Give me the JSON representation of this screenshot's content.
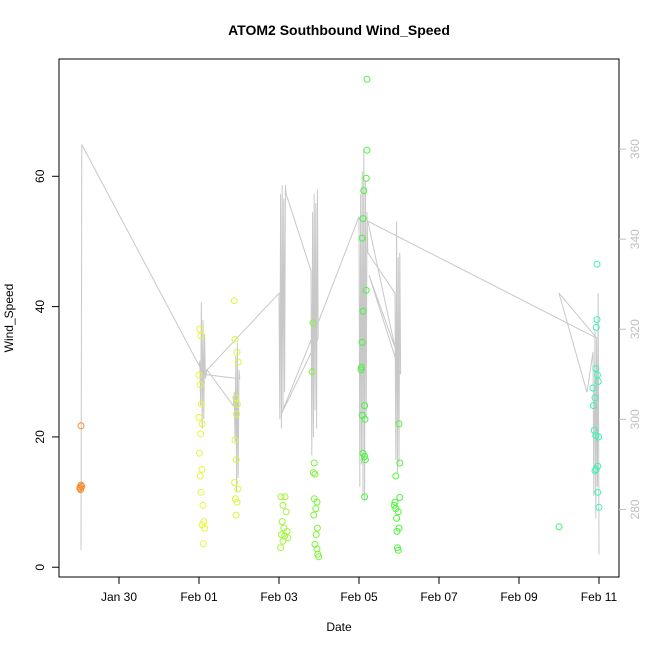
{
  "chart_data": {
    "type": "scatter",
    "title": "ATOM2 Southbound Wind_Speed",
    "xlabel": "Date",
    "ylabel": "Wind_Speed",
    "x_ticks": [
      {
        "label": "Jan 30",
        "value": 0
      },
      {
        "label": "Feb 01",
        "value": 2
      },
      {
        "label": "Feb 03",
        "value": 4
      },
      {
        "label": "Feb 05",
        "value": 6
      },
      {
        "label": "Feb 07",
        "value": 8
      },
      {
        "label": "Feb 09",
        "value": 10
      },
      {
        "label": "Feb 11",
        "value": 12
      }
    ],
    "xlim": [
      -1.5,
      12.5
    ],
    "ylim": [
      -1.5,
      78
    ],
    "y_ticks": [
      0,
      20,
      40,
      60
    ],
    "y2lim": [
      265,
      380
    ],
    "y2_ticks": [
      280,
      300,
      320,
      340,
      360
    ],
    "y2_color": "#bfbfbf",
    "grid": false,
    "points": [
      {
        "x": -0.95,
        "y": 21.7,
        "color": "#f98a2c"
      },
      {
        "x": -0.95,
        "y": 12.6,
        "color": "#f98a2c"
      },
      {
        "x": -0.97,
        "y": 12.3,
        "color": "#f98a2c"
      },
      {
        "x": -0.98,
        "y": 12.1,
        "color": "#f98a2c"
      },
      {
        "x": -0.93,
        "y": 12.4,
        "color": "#f98a2c"
      },
      {
        "x": -0.96,
        "y": 11.9,
        "color": "#f98a2c"
      },
      {
        "x": 2.02,
        "y": 36.5,
        "color": "#e8f53c"
      },
      {
        "x": 2.05,
        "y": 35.5,
        "color": "#e8f53c"
      },
      {
        "x": 2.0,
        "y": 29.5,
        "color": "#e8f53c"
      },
      {
        "x": 2.03,
        "y": 28.0,
        "color": "#e8f53c"
      },
      {
        "x": 2.06,
        "y": 25.0,
        "color": "#e8f53c"
      },
      {
        "x": 2.0,
        "y": 23.0,
        "color": "#e8f53c"
      },
      {
        "x": 2.08,
        "y": 22.0,
        "color": "#e8f53c"
      },
      {
        "x": 2.04,
        "y": 20.5,
        "color": "#e8f53c"
      },
      {
        "x": 2.01,
        "y": 17.5,
        "color": "#e8f53c"
      },
      {
        "x": 2.07,
        "y": 15.0,
        "color": "#e8f53c"
      },
      {
        "x": 2.03,
        "y": 14.0,
        "color": "#e8f53c"
      },
      {
        "x": 2.05,
        "y": 11.5,
        "color": "#e8f53c"
      },
      {
        "x": 2.1,
        "y": 9.5,
        "color": "#e8f53c"
      },
      {
        "x": 2.12,
        "y": 7.0,
        "color": "#e8f53c"
      },
      {
        "x": 2.08,
        "y": 6.5,
        "color": "#e8f53c"
      },
      {
        "x": 2.14,
        "y": 6.0,
        "color": "#e8f53c"
      },
      {
        "x": 2.11,
        "y": 3.6,
        "color": "#e8f53c"
      },
      {
        "x": 2.88,
        "y": 40.9,
        "color": "#dcf53c"
      },
      {
        "x": 2.9,
        "y": 35.0,
        "color": "#dcf53c"
      },
      {
        "x": 2.95,
        "y": 33.0,
        "color": "#dcf53c"
      },
      {
        "x": 2.98,
        "y": 31.5,
        "color": "#dcf53c"
      },
      {
        "x": 2.92,
        "y": 26.0,
        "color": "#dcf53c"
      },
      {
        "x": 2.96,
        "y": 25.0,
        "color": "#dcf53c"
      },
      {
        "x": 2.94,
        "y": 23.5,
        "color": "#dcf53c"
      },
      {
        "x": 2.9,
        "y": 19.5,
        "color": "#dcf53c"
      },
      {
        "x": 2.93,
        "y": 16.5,
        "color": "#dcf53c"
      },
      {
        "x": 2.89,
        "y": 13.0,
        "color": "#dcf53c"
      },
      {
        "x": 2.97,
        "y": 12.0,
        "color": "#dcf53c"
      },
      {
        "x": 2.91,
        "y": 10.5,
        "color": "#dcf53c"
      },
      {
        "x": 2.95,
        "y": 10.0,
        "color": "#dcf53c"
      },
      {
        "x": 2.93,
        "y": 8.0,
        "color": "#dcf53c"
      },
      {
        "x": 4.05,
        "y": 10.8,
        "color": "#a2f53a"
      },
      {
        "x": 4.15,
        "y": 10.8,
        "color": "#a2f53a"
      },
      {
        "x": 4.1,
        "y": 9.5,
        "color": "#a2f53a"
      },
      {
        "x": 4.18,
        "y": 8.5,
        "color": "#a2f53a"
      },
      {
        "x": 4.08,
        "y": 7.0,
        "color": "#a2f53a"
      },
      {
        "x": 4.12,
        "y": 6.0,
        "color": "#a2f53a"
      },
      {
        "x": 4.2,
        "y": 5.5,
        "color": "#a2f53a"
      },
      {
        "x": 4.06,
        "y": 5.0,
        "color": "#a2f53a"
      },
      {
        "x": 4.14,
        "y": 4.8,
        "color": "#a2f53a"
      },
      {
        "x": 4.22,
        "y": 4.5,
        "color": "#a2f53a"
      },
      {
        "x": 4.1,
        "y": 4.0,
        "color": "#a2f53a"
      },
      {
        "x": 4.04,
        "y": 3.0,
        "color": "#a2f53a"
      },
      {
        "x": 4.85,
        "y": 37.5,
        "color": "#7ef53a"
      },
      {
        "x": 4.83,
        "y": 30.0,
        "color": "#7ef53a"
      },
      {
        "x": 4.88,
        "y": 16.0,
        "color": "#7ef53a"
      },
      {
        "x": 4.86,
        "y": 14.5,
        "color": "#7ef53a"
      },
      {
        "x": 4.9,
        "y": 14.3,
        "color": "#7ef53a"
      },
      {
        "x": 4.88,
        "y": 10.5,
        "color": "#7ef53a"
      },
      {
        "x": 4.95,
        "y": 10.0,
        "color": "#7ef53a"
      },
      {
        "x": 4.92,
        "y": 9.0,
        "color": "#7ef53a"
      },
      {
        "x": 4.87,
        "y": 8.0,
        "color": "#7ef53a"
      },
      {
        "x": 4.96,
        "y": 6.0,
        "color": "#7ef53a"
      },
      {
        "x": 4.93,
        "y": 5.0,
        "color": "#7ef53a"
      },
      {
        "x": 4.9,
        "y": 3.5,
        "color": "#7ef53a"
      },
      {
        "x": 4.95,
        "y": 2.8,
        "color": "#7ef53a"
      },
      {
        "x": 4.97,
        "y": 2.0,
        "color": "#7ef53a"
      },
      {
        "x": 4.99,
        "y": 1.6,
        "color": "#7ef53a"
      },
      {
        "x": 6.2,
        "y": 74.9,
        "color": "#44f53a"
      },
      {
        "x": 6.2,
        "y": 64.0,
        "color": "#44f53a"
      },
      {
        "x": 6.18,
        "y": 59.7,
        "color": "#44f53a"
      },
      {
        "x": 6.12,
        "y": 57.8,
        "color": "#44f53a"
      },
      {
        "x": 6.1,
        "y": 53.5,
        "color": "#44f53a"
      },
      {
        "x": 6.08,
        "y": 50.5,
        "color": "#44f53a"
      },
      {
        "x": 6.18,
        "y": 42.5,
        "color": "#44f53a"
      },
      {
        "x": 6.1,
        "y": 39.3,
        "color": "#44f53a"
      },
      {
        "x": 6.08,
        "y": 34.5,
        "color": "#44f53a"
      },
      {
        "x": 6.06,
        "y": 30.7,
        "color": "#44f53a"
      },
      {
        "x": 6.05,
        "y": 30.3,
        "color": "#44f53a"
      },
      {
        "x": 6.14,
        "y": 24.8,
        "color": "#44f53a"
      },
      {
        "x": 6.08,
        "y": 23.3,
        "color": "#44f53a"
      },
      {
        "x": 6.15,
        "y": 22.7,
        "color": "#44f53a"
      },
      {
        "x": 6.1,
        "y": 17.5,
        "color": "#44f53a"
      },
      {
        "x": 6.14,
        "y": 17.0,
        "color": "#44f53a"
      },
      {
        "x": 6.16,
        "y": 16.5,
        "color": "#44f53a"
      },
      {
        "x": 6.14,
        "y": 10.8,
        "color": "#44f53a"
      },
      {
        "x": 7.0,
        "y": 22.0,
        "color": "#4ef53a"
      },
      {
        "x": 7.02,
        "y": 16.0,
        "color": "#4ef53a"
      },
      {
        "x": 6.92,
        "y": 14.0,
        "color": "#4ef53a"
      },
      {
        "x": 7.02,
        "y": 10.7,
        "color": "#4ef53a"
      },
      {
        "x": 6.9,
        "y": 10.0,
        "color": "#4ef53a"
      },
      {
        "x": 6.88,
        "y": 9.5,
        "color": "#4ef53a"
      },
      {
        "x": 6.92,
        "y": 9.0,
        "color": "#4ef53a"
      },
      {
        "x": 6.98,
        "y": 8.5,
        "color": "#4ef53a"
      },
      {
        "x": 6.94,
        "y": 7.5,
        "color": "#4ef53a"
      },
      {
        "x": 7.0,
        "y": 6.0,
        "color": "#4ef53a"
      },
      {
        "x": 6.95,
        "y": 5.5,
        "color": "#4ef53a"
      },
      {
        "x": 6.96,
        "y": 3.0,
        "color": "#4ef53a"
      },
      {
        "x": 6.98,
        "y": 2.6,
        "color": "#4ef53a"
      },
      {
        "x": 11.0,
        "y": 6.2,
        "color": "#3af56a"
      },
      {
        "x": 11.95,
        "y": 46.5,
        "color": "#3af5b3"
      },
      {
        "x": 11.95,
        "y": 38.0,
        "color": "#3af5b3"
      },
      {
        "x": 11.93,
        "y": 36.8,
        "color": "#3af5b3"
      },
      {
        "x": 11.92,
        "y": 30.5,
        "color": "#3af5b3"
      },
      {
        "x": 11.96,
        "y": 29.5,
        "color": "#3af5b3"
      },
      {
        "x": 11.98,
        "y": 28.5,
        "color": "#3af5b3"
      },
      {
        "x": 11.85,
        "y": 27.5,
        "color": "#3af5b3"
      },
      {
        "x": 11.9,
        "y": 26.0,
        "color": "#3af5b3"
      },
      {
        "x": 11.86,
        "y": 24.8,
        "color": "#3af5b3"
      },
      {
        "x": 11.88,
        "y": 21.0,
        "color": "#3af5b3"
      },
      {
        "x": 11.92,
        "y": 20.2,
        "color": "#3af5b3"
      },
      {
        "x": 11.99,
        "y": 20.0,
        "color": "#3af5b3"
      },
      {
        "x": 11.97,
        "y": 15.5,
        "color": "#3af5b3"
      },
      {
        "x": 11.93,
        "y": 15.0,
        "color": "#3af5b3"
      },
      {
        "x": 11.9,
        "y": 14.8,
        "color": "#3af5b3"
      },
      {
        "x": 11.97,
        "y": 11.5,
        "color": "#3af5b3"
      },
      {
        "x": 12.0,
        "y": 9.2,
        "color": "#3af5b3"
      }
    ],
    "direction_line": {
      "axis": "right",
      "color": "#c8c8c8",
      "points": [
        [
          -0.95,
          271
        ],
        [
          -0.93,
          361
        ],
        [
          2.0,
          312
        ],
        [
          2.02,
          313
        ],
        [
          2.04,
          303
        ],
        [
          2.06,
          326
        ],
        [
          2.08,
          298
        ],
        [
          2.1,
          322
        ],
        [
          2.12,
          300
        ],
        [
          2.14,
          319
        ],
        [
          2.16,
          309
        ],
        [
          2.2,
          311
        ],
        [
          2.86,
          303
        ],
        [
          2.88,
          306
        ],
        [
          2.9,
          295
        ],
        [
          2.92,
          314
        ],
        [
          2.94,
          284
        ],
        [
          2.96,
          317
        ],
        [
          2.98,
          287
        ],
        [
          3.0,
          311
        ],
        [
          3.02,
          309
        ],
        [
          2.1,
          310
        ],
        [
          4.0,
          328
        ],
        [
          4.02,
          300
        ],
        [
          4.04,
          350
        ],
        [
          4.06,
          298
        ],
        [
          4.08,
          352
        ],
        [
          4.1,
          302
        ],
        [
          4.12,
          349
        ],
        [
          4.14,
          306
        ],
        [
          4.16,
          352
        ],
        [
          4.18,
          350
        ],
        [
          4.8,
          333
        ],
        [
          4.82,
          292
        ],
        [
          4.84,
          346
        ],
        [
          4.86,
          296
        ],
        [
          4.88,
          350
        ],
        [
          4.9,
          302
        ],
        [
          4.92,
          348
        ],
        [
          4.94,
          298
        ],
        [
          4.96,
          351
        ],
        [
          4.98,
          318
        ],
        [
          4.05,
          301
        ],
        [
          5.0,
          322
        ],
        [
          6.0,
          345
        ],
        [
          6.02,
          285
        ],
        [
          6.04,
          350
        ],
        [
          6.06,
          290
        ],
        [
          6.08,
          355
        ],
        [
          6.1,
          283
        ],
        [
          6.12,
          360
        ],
        [
          6.14,
          282
        ],
        [
          6.16,
          353
        ],
        [
          6.18,
          300
        ],
        [
          6.2,
          346
        ],
        [
          6.22,
          337
        ],
        [
          6.9,
          328
        ],
        [
          6.92,
          291
        ],
        [
          6.94,
          344
        ],
        [
          6.96,
          288
        ],
        [
          6.98,
          336
        ],
        [
          7.0,
          290
        ],
        [
          7.02,
          337
        ],
        [
          7.04,
          310
        ],
        [
          6.25,
          332
        ],
        [
          6.9,
          316
        ],
        [
          6.22,
          344
        ],
        [
          11.95,
          318
        ],
        [
          11.0,
          328
        ],
        [
          11.7,
          306
        ],
        [
          11.85,
          315
        ],
        [
          11.87,
          283
        ],
        [
          11.9,
          320
        ],
        [
          11.92,
          278
        ],
        [
          11.94,
          318
        ],
        [
          11.96,
          285
        ],
        [
          11.98,
          328
        ],
        [
          12.0,
          270
        ]
      ]
    }
  }
}
